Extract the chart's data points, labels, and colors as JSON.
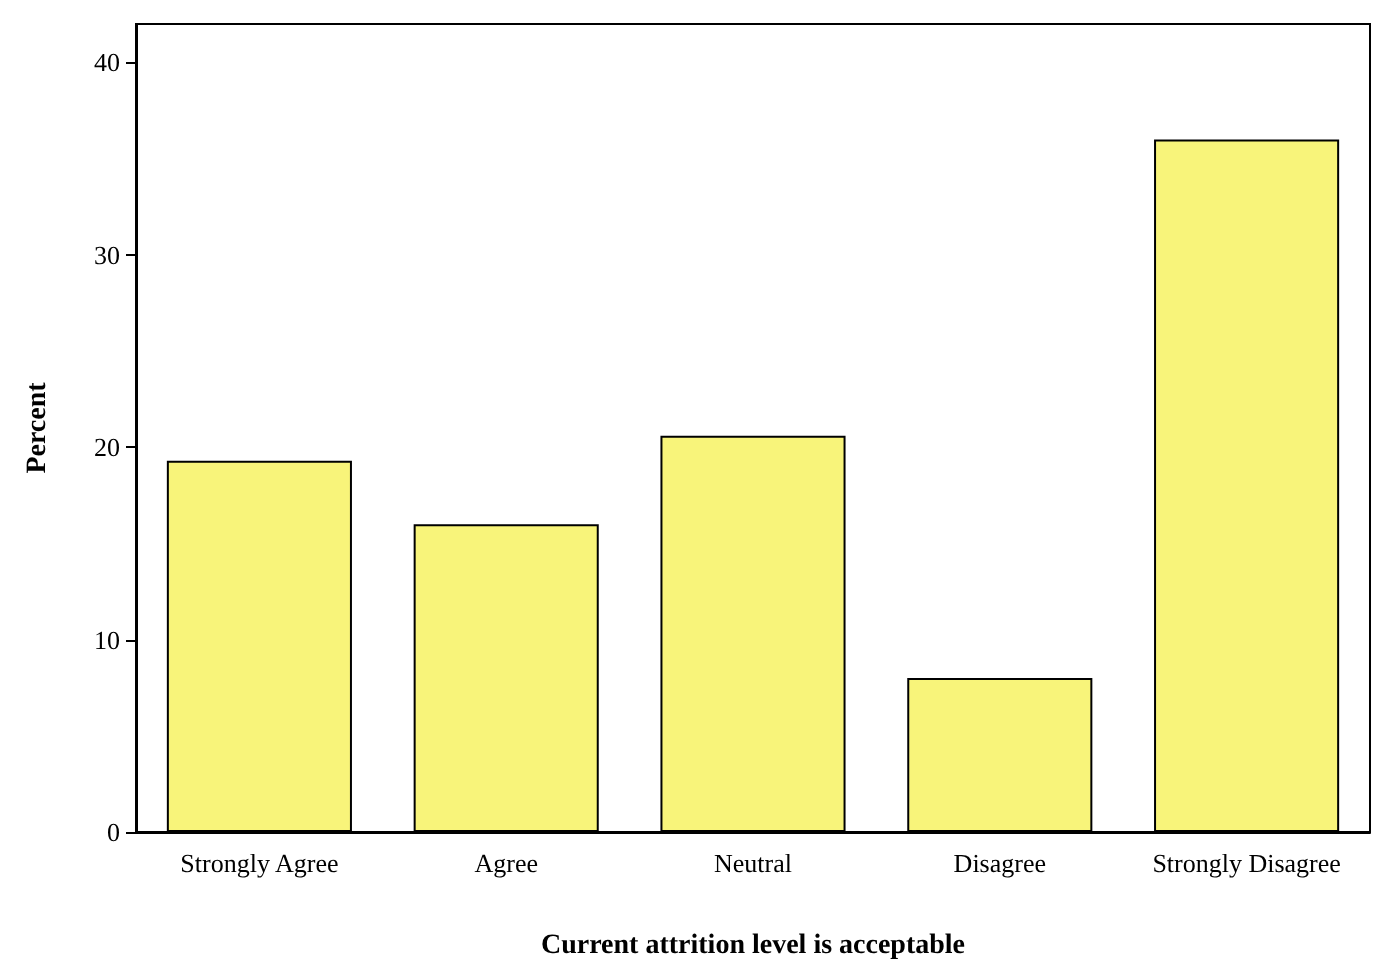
{
  "chart_data": {
    "type": "bar",
    "xlabel": "Current attrition level is acceptable",
    "ylabel": "Percent",
    "categories": [
      "Strongly Agree",
      "Agree",
      "Neutral",
      "Disagree",
      "Strongly Disagree"
    ],
    "values": [
      19.3,
      16.0,
      20.6,
      8.0,
      36.0
    ],
    "color": "#f8f47a",
    "ylim": [
      0,
      42
    ],
    "yticks": [
      0,
      10,
      20,
      30,
      40
    ],
    "grid": false
  }
}
